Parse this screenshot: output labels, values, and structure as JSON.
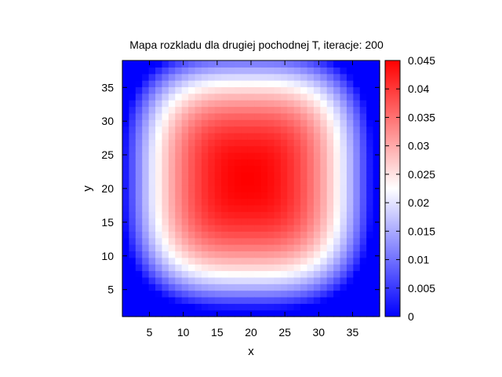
{
  "chart_data": {
    "type": "heatmap",
    "title": "Mapa rozkladu dla drugiej pochodnej T, iteracje: 200",
    "xlabel": "x",
    "ylabel": "y",
    "xlim": [
      1,
      39
    ],
    "ylim": [
      1,
      39
    ],
    "x_ticks": [
      5,
      10,
      15,
      20,
      25,
      30,
      35
    ],
    "y_ticks": [
      5,
      10,
      15,
      20,
      25,
      30,
      35
    ],
    "grid_size": [
      39,
      39
    ],
    "colorbar": {
      "min": 0,
      "max": 0.045,
      "ticks": [
        0,
        0.005,
        0.01,
        0.015,
        0.02,
        0.025,
        0.03,
        0.035,
        0.04,
        0.045
      ],
      "tick_labels": [
        "0",
        "0.005",
        "0.01",
        "0.015",
        "0.02",
        "0.025",
        "0.03",
        "0.035",
        "0.04",
        "0.045"
      ],
      "colors": [
        "#0000ff",
        "#ffffff",
        "#ff0000"
      ],
      "placement": "right"
    },
    "field": {
      "description_units": "value of second derivative of T",
      "peak_value": 0.045,
      "peak_location": [
        20,
        22
      ],
      "edge_value": 0.0,
      "half_width_x": 19,
      "half_width_y": 20,
      "shape_exponent": 1.6
    }
  }
}
